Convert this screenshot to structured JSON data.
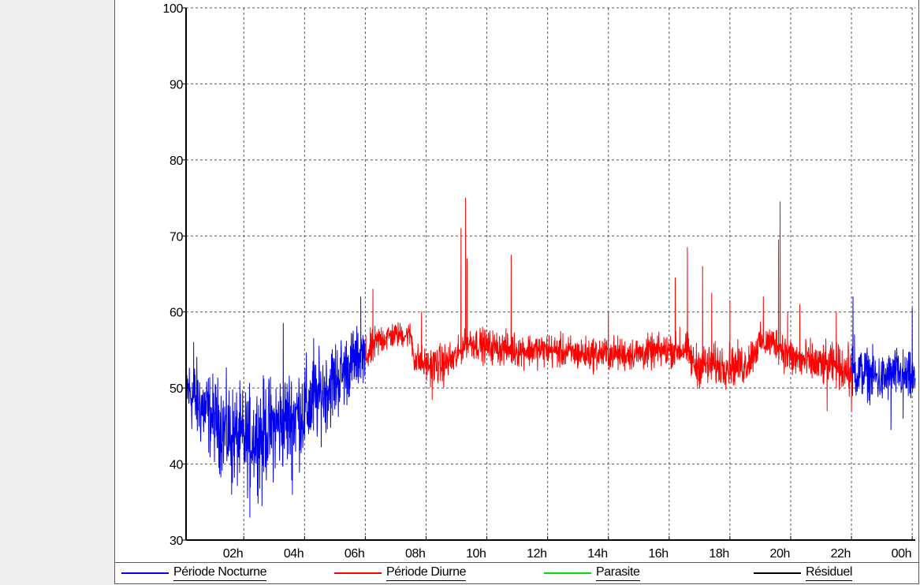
{
  "chart_data": {
    "type": "line",
    "title": "",
    "xlabel": "",
    "ylabel": "",
    "ylim": [
      30,
      100
    ],
    "xlim_hours": [
      0.1,
      24.1
    ],
    "y_ticks": [
      30,
      40,
      50,
      60,
      70,
      80,
      90,
      100
    ],
    "y_tick_labels": [
      "30",
      "40",
      "50",
      "60",
      "70",
      "80",
      "90",
      "100"
    ],
    "x_ticks_hours": [
      2,
      4,
      6,
      8,
      10,
      12,
      14,
      16,
      18,
      20,
      22,
      24
    ],
    "x_tick_labels": [
      "02h",
      "04h",
      "06h",
      "08h",
      "10h",
      "12h",
      "14h",
      "16h",
      "18h",
      "20h",
      "22h",
      "00h"
    ],
    "grid": true,
    "legend_position": "bottom",
    "series": [
      {
        "name": "Période Nocturne",
        "color": "#0000ee",
        "segments": [
          {
            "x_hours": [
              0.1,
              0.5,
              1.0,
              1.5,
              2.0,
              2.5,
              3.0,
              3.5,
              4.0,
              4.5,
              5.0,
              5.5,
              6.0
            ],
            "y_mean": [
              50,
              48,
              46,
              44,
              43,
              44,
              45,
              46,
              47,
              49,
              51,
              53,
              55
            ],
            "y_spread": [
              4,
              5,
              5,
              6,
              6,
              6,
              6,
              6,
              6,
              5,
              5,
              4,
              3
            ],
            "peaks": [
              [
                0.35,
                56
              ],
              [
                1.6,
                36
              ],
              [
                2.2,
                33
              ],
              [
                3.3,
                58.5
              ],
              [
                4.3,
                56.5
              ],
              [
                5.6,
                57.5
              ],
              [
                5.85,
                62
              ],
              [
                2.6,
                34.5
              ],
              [
                3.6,
                36
              ]
            ]
          },
          {
            "x_hours": [
              22.0,
              22.5,
              23.0,
              23.5,
              24.0,
              24.1
            ],
            "y_mean": [
              52,
              52,
              51,
              52,
              51,
              51
            ],
            "y_spread": [
              3,
              3,
              3,
              3,
              3,
              3
            ],
            "peaks": [
              [
                22.05,
                62
              ],
              [
                22.1,
                57
              ],
              [
                23.3,
                44.5
              ],
              [
                24.0,
                60.5
              ],
              [
                23.7,
                46
              ]
            ]
          }
        ]
      },
      {
        "name": "Période Diurne",
        "color": "#ff0000",
        "segments": [
          {
            "x_hours": [
              6.0,
              6.5,
              7.0,
              7.5,
              7.6,
              8.0,
              8.5,
              9.0,
              9.3,
              9.5,
              10.0,
              11.0,
              12.0,
              13.0,
              14.0,
              15.0,
              16.0,
              16.6,
              16.8,
              17.5,
              18.0,
              18.5,
              19.0,
              19.5,
              20.0,
              20.5,
              21.0,
              21.5,
              22.0
            ],
            "y_mean": [
              54,
              56.5,
              57,
              57,
              54,
              53,
              53,
              54,
              56,
              56,
              55.5,
              55,
              55,
              54.5,
              54.5,
              54.5,
              55,
              55,
              53,
              53,
              53,
              53,
              56,
              56,
              54,
              53.5,
              53,
              53,
              52
            ],
            "y_spread": [
              2.5,
              2,
              1.5,
              1.5,
              2,
              2,
              2.5,
              2,
              1.5,
              2,
              2,
              2,
              2,
              2,
              2,
              2,
              2,
              2,
              2.5,
              2.5,
              2.5,
              2.5,
              2,
              2,
              2.5,
              2.5,
              2.5,
              2.5,
              3
            ],
            "peaks": [
              [
                6.25,
                63
              ],
              [
                7.85,
                60
              ],
              [
                8.2,
                48.5
              ],
              [
                9.15,
                71
              ],
              [
                9.3,
                75
              ],
              [
                9.35,
                67
              ],
              [
                10.8,
                67.5
              ],
              [
                14.0,
                60
              ],
              [
                16.2,
                64.5
              ],
              [
                16.35,
                58
              ],
              [
                16.6,
                68.5
              ],
              [
                17.1,
                66
              ],
              [
                17.4,
                62.5
              ],
              [
                18.0,
                61.5
              ],
              [
                19.1,
                62
              ],
              [
                19.6,
                69.5
              ],
              [
                19.65,
                74.5
              ],
              [
                19.9,
                60
              ],
              [
                20.3,
                61
              ],
              [
                21.2,
                47
              ],
              [
                21.5,
                60
              ],
              [
                22.0,
                47
              ]
            ]
          }
        ]
      },
      {
        "name": "Parasite",
        "color": "#00dd00",
        "segments": []
      },
      {
        "name": "Résiduel",
        "color": "#000000",
        "segments": []
      }
    ]
  }
}
